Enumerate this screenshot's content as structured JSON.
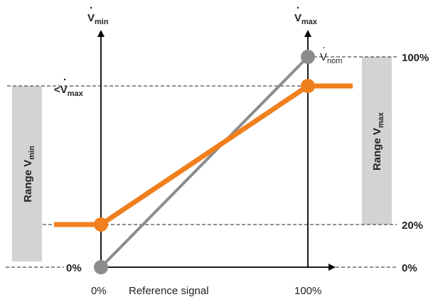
{
  "diagram": {
    "axes": {
      "left_axis": {
        "symbol": "V",
        "subscript": "min"
      },
      "right_axis": {
        "symbol": "V",
        "subscript": "max"
      }
    },
    "labels": {
      "left_lt_vmax": {
        "prefix": "<",
        "symbol": "V",
        "subscript": "max"
      },
      "left_zero": "0%",
      "right_top": "100%",
      "right_20": "20%",
      "right_zero": "0%",
      "x_zero": "0%",
      "x_hundred": "100%",
      "x_axis_title": "Reference signal",
      "vnom": {
        "symbol": "V",
        "subscript": "nom"
      }
    },
    "bands": {
      "left": {
        "text": "Range ",
        "symbol": "V",
        "subscript": "min"
      },
      "right": {
        "text": "Range ",
        "symbol": "V",
        "subscript": "max"
      }
    },
    "colors": {
      "orange": "#f07f1e",
      "gray": "#8c8c8c",
      "band": "#d3d3d3",
      "axis": "#000000"
    }
  }
}
